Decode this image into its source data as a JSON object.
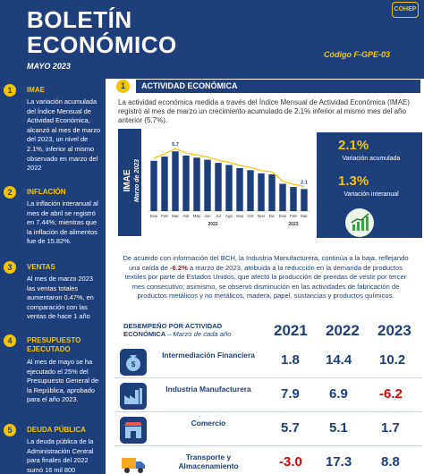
{
  "header": {
    "title_line1": "BOLETÍN",
    "title_line2": "ECONÓMICO",
    "date": "MAYO 2023",
    "code": "Código F-GPE-03",
    "logo_text": "COHEP"
  },
  "sidebar": {
    "items": [
      {
        "num": "1",
        "heading": "IMAE",
        "text": "La variación acumulada del Índice Mensual de Actividad Económica, alcanzó al mes de marzo del 2023, un nivel de 2.1%, inferior al mismo observado en marzo del 2022"
      },
      {
        "num": "2",
        "heading": "INFLACIÓN",
        "text": "La inflación interanual al mes de abril se registró en 7.44%; mientras que la inflación de alimentos fue de 15.82%."
      },
      {
        "num": "3",
        "heading": "VENTAS",
        "text": "Al mes de marzo 2023 las ventas totales aumentaron 0.47%, en comparación con las ventas de hace 1 año"
      },
      {
        "num": "4",
        "heading": "PRESUPUESTO EJECUTADO",
        "text": "Al mes de mayo se ha ejecutado el 25% del Presupuesto General de la República, aprobado para el año 2023."
      },
      {
        "num": "5",
        "heading": "DEUDA PÚBLICA",
        "text": "La deuda pública de la Administración Central para finales del 2022 sumó 16 mil 800"
      }
    ]
  },
  "section": {
    "num": "1",
    "title": "ACTIVIDAD ECONÓMICA",
    "intro": "La actividad económica medida a través del Índice Mensual de Actividad Económica (IMAE) registró al mes de marzo un crecimiento acumulado de 2.1% inferior al mismo mes del año anterior (5.7%).",
    "chart_label_main": "IMAE",
    "chart_label_sub": "Marzo de 2023",
    "stat1_value": "2.1%",
    "stat1_label": "Variación acumulada",
    "stat2_value": "1.3%",
    "stat2_label": "Variación interanual",
    "narrative_a": "De acuerdo con información del BCH, la Industria Manufacturera, continúa a la baja, reflejando una caída de ",
    "narrative_neg": "-6.2%",
    "narrative_b": " a marzo de 2023, atribuida a la reducción en la demanda de productos textiles por parte de Estados Unidos, que afectó la producción de prendas de vestir por tercer mes consecutivo; asimismo, se observó disminución en las actividades de fabricación de productos metálicos y no metálicos, madera, papel, sustancias y productos químicos."
  },
  "chart_data": {
    "type": "bar",
    "categories": [
      "Ene",
      "Feb",
      "Mar",
      "Abr",
      "May",
      "Jun",
      "Jul",
      "Ago",
      "Sep",
      "Oct",
      "Nov",
      "Dic",
      "Ene",
      "Feb",
      "Mar"
    ],
    "year_labels": [
      "2022",
      "2023"
    ],
    "values": [
      4.8,
      5.2,
      5.7,
      5.3,
      5.1,
      4.9,
      4.6,
      4.4,
      4.1,
      3.9,
      3.6,
      3.5,
      2.6,
      2.3,
      2.1
    ],
    "data_labels": [
      {
        "index": 2,
        "text": "5.7"
      },
      {
        "index": 14,
        "text": "2.1"
      }
    ],
    "ylim": [
      0,
      7
    ],
    "bar_color": "#1d3f7a",
    "line_color": "#f5c400"
  },
  "table": {
    "header_label": "DESEMPEÑO POR ACTIVIDAD ECONÓMICA",
    "header_sub": "– Marzo de cada año",
    "years": [
      "2021",
      "2022",
      "2023"
    ],
    "rows": [
      {
        "name": "Intermediación Financiera",
        "icon": "money-bag-icon",
        "v2021": "1.8",
        "v2022": "14.4",
        "v2023": "10.2"
      },
      {
        "name": "Industria Manufacturera",
        "icon": "factory-icon",
        "v2021": "7.9",
        "v2022": "6.9",
        "v2023": "-6.2"
      },
      {
        "name": "Comercio",
        "icon": "shop-icon",
        "v2021": "5.7",
        "v2022": "5.1",
        "v2023": "1.7"
      },
      {
        "name": "Transporte y Almacenamiento",
        "icon": "truck-icon",
        "v2021": "-3.0",
        "v2022": "17.3",
        "v2023": "8.8"
      }
    ]
  },
  "colors": {
    "navy": "#1d3f7a",
    "yellow": "#f5c400",
    "negative": "#e60000"
  }
}
